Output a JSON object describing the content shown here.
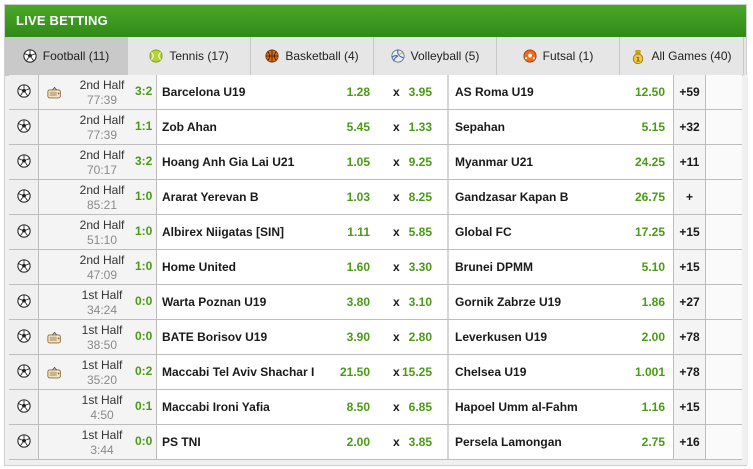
{
  "header": {
    "title": "LIVE BETTING"
  },
  "colors": {
    "brand_green": "#3a9a1e",
    "odd_green": "#4a9a16"
  },
  "tabs": [
    {
      "label": "Football (11)",
      "icon": "football-icon",
      "active": true
    },
    {
      "label": "Tennis (17)",
      "icon": "tennis-ball-icon",
      "active": false
    },
    {
      "label": "Basketball (4)",
      "icon": "basketball-icon",
      "active": false
    },
    {
      "label": "Volleyball (5)",
      "icon": "volleyball-icon",
      "active": false
    },
    {
      "label": "Futsal (1)",
      "icon": "futsal-icon",
      "active": false
    },
    {
      "label": "All Games (40)",
      "icon": "medal-icon",
      "active": false
    }
  ],
  "matches": [
    {
      "period": "2nd Half",
      "clock": "77:39",
      "score": "3:2",
      "home": "Barcelona U19",
      "home_odd": "1.28",
      "x_label": "x",
      "draw_odd": "3.95",
      "away": "AS Roma U19",
      "away_odd": "12.50",
      "more": "+59",
      "tv": true
    },
    {
      "period": "2nd Half",
      "clock": "77:39",
      "score": "1:1",
      "home": "Zob Ahan",
      "home_odd": "5.45",
      "x_label": "x",
      "draw_odd": "1.33",
      "away": "Sepahan",
      "away_odd": "5.15",
      "more": "+32",
      "tv": false
    },
    {
      "period": "2nd Half",
      "clock": "70:17",
      "score": "3:2",
      "home": "Hoang Anh Gia Lai U21",
      "home_odd": "1.05",
      "x_label": "x",
      "draw_odd": "9.25",
      "away": "Myanmar U21",
      "away_odd": "24.25",
      "more": "+11",
      "tv": false
    },
    {
      "period": "2nd Half",
      "clock": "85:21",
      "score": "1:0",
      "home": "Ararat Yerevan B",
      "home_odd": "1.03",
      "x_label": "x",
      "draw_odd": "8.25",
      "away": "Gandzasar Kapan B",
      "away_odd": "26.75",
      "more": "+",
      "tv": false
    },
    {
      "period": "2nd Half",
      "clock": "51:10",
      "score": "1:0",
      "home": "Albirex Niigatas [SIN]",
      "home_odd": "1.11",
      "x_label": "x",
      "draw_odd": "5.85",
      "away": "Global FC",
      "away_odd": "17.25",
      "more": "+15",
      "tv": false
    },
    {
      "period": "2nd Half",
      "clock": "47:09",
      "score": "1:0",
      "home": "Home United",
      "home_odd": "1.60",
      "x_label": "x",
      "draw_odd": "3.30",
      "away": "Brunei DPMM",
      "away_odd": "5.10",
      "more": "+15",
      "tv": false
    },
    {
      "period": "1st Half",
      "clock": "34:24",
      "score": "0:0",
      "home": "Warta Poznan U19",
      "home_odd": "3.80",
      "x_label": "x",
      "draw_odd": "3.10",
      "away": "Gornik Zabrze U19",
      "away_odd": "1.86",
      "more": "+27",
      "tv": false
    },
    {
      "period": "1st Half",
      "clock": "38:50",
      "score": "0:0",
      "home": "BATE Borisov U19",
      "home_odd": "3.90",
      "x_label": "x",
      "draw_odd": "2.80",
      "away": "Leverkusen U19",
      "away_odd": "2.00",
      "more": "+78",
      "tv": true
    },
    {
      "period": "1st Half",
      "clock": "35:20",
      "score": "0:2",
      "home": "Maccabi Tel Aviv Shachar I",
      "home_odd": "21.50",
      "x_label": "x",
      "draw_odd": "15.25",
      "away": "Chelsea U19",
      "away_odd": "1.001",
      "more": "+78",
      "tv": true
    },
    {
      "period": "1st Half",
      "clock": "4:50",
      "score": "0:1",
      "home": "Maccabi Ironi Yafia",
      "home_odd": "8.50",
      "x_label": "x",
      "draw_odd": "6.85",
      "away": "Hapoel Umm al-Fahm",
      "away_odd": "1.16",
      "more": "+15",
      "tv": false
    },
    {
      "period": "1st Half",
      "clock": "3:44",
      "score": "0:0",
      "home": "PS TNI",
      "home_odd": "2.00",
      "x_label": "x",
      "draw_odd": "3.85",
      "away": "Persela Lamongan",
      "away_odd": "2.75",
      "more": "+16",
      "tv": false
    }
  ]
}
